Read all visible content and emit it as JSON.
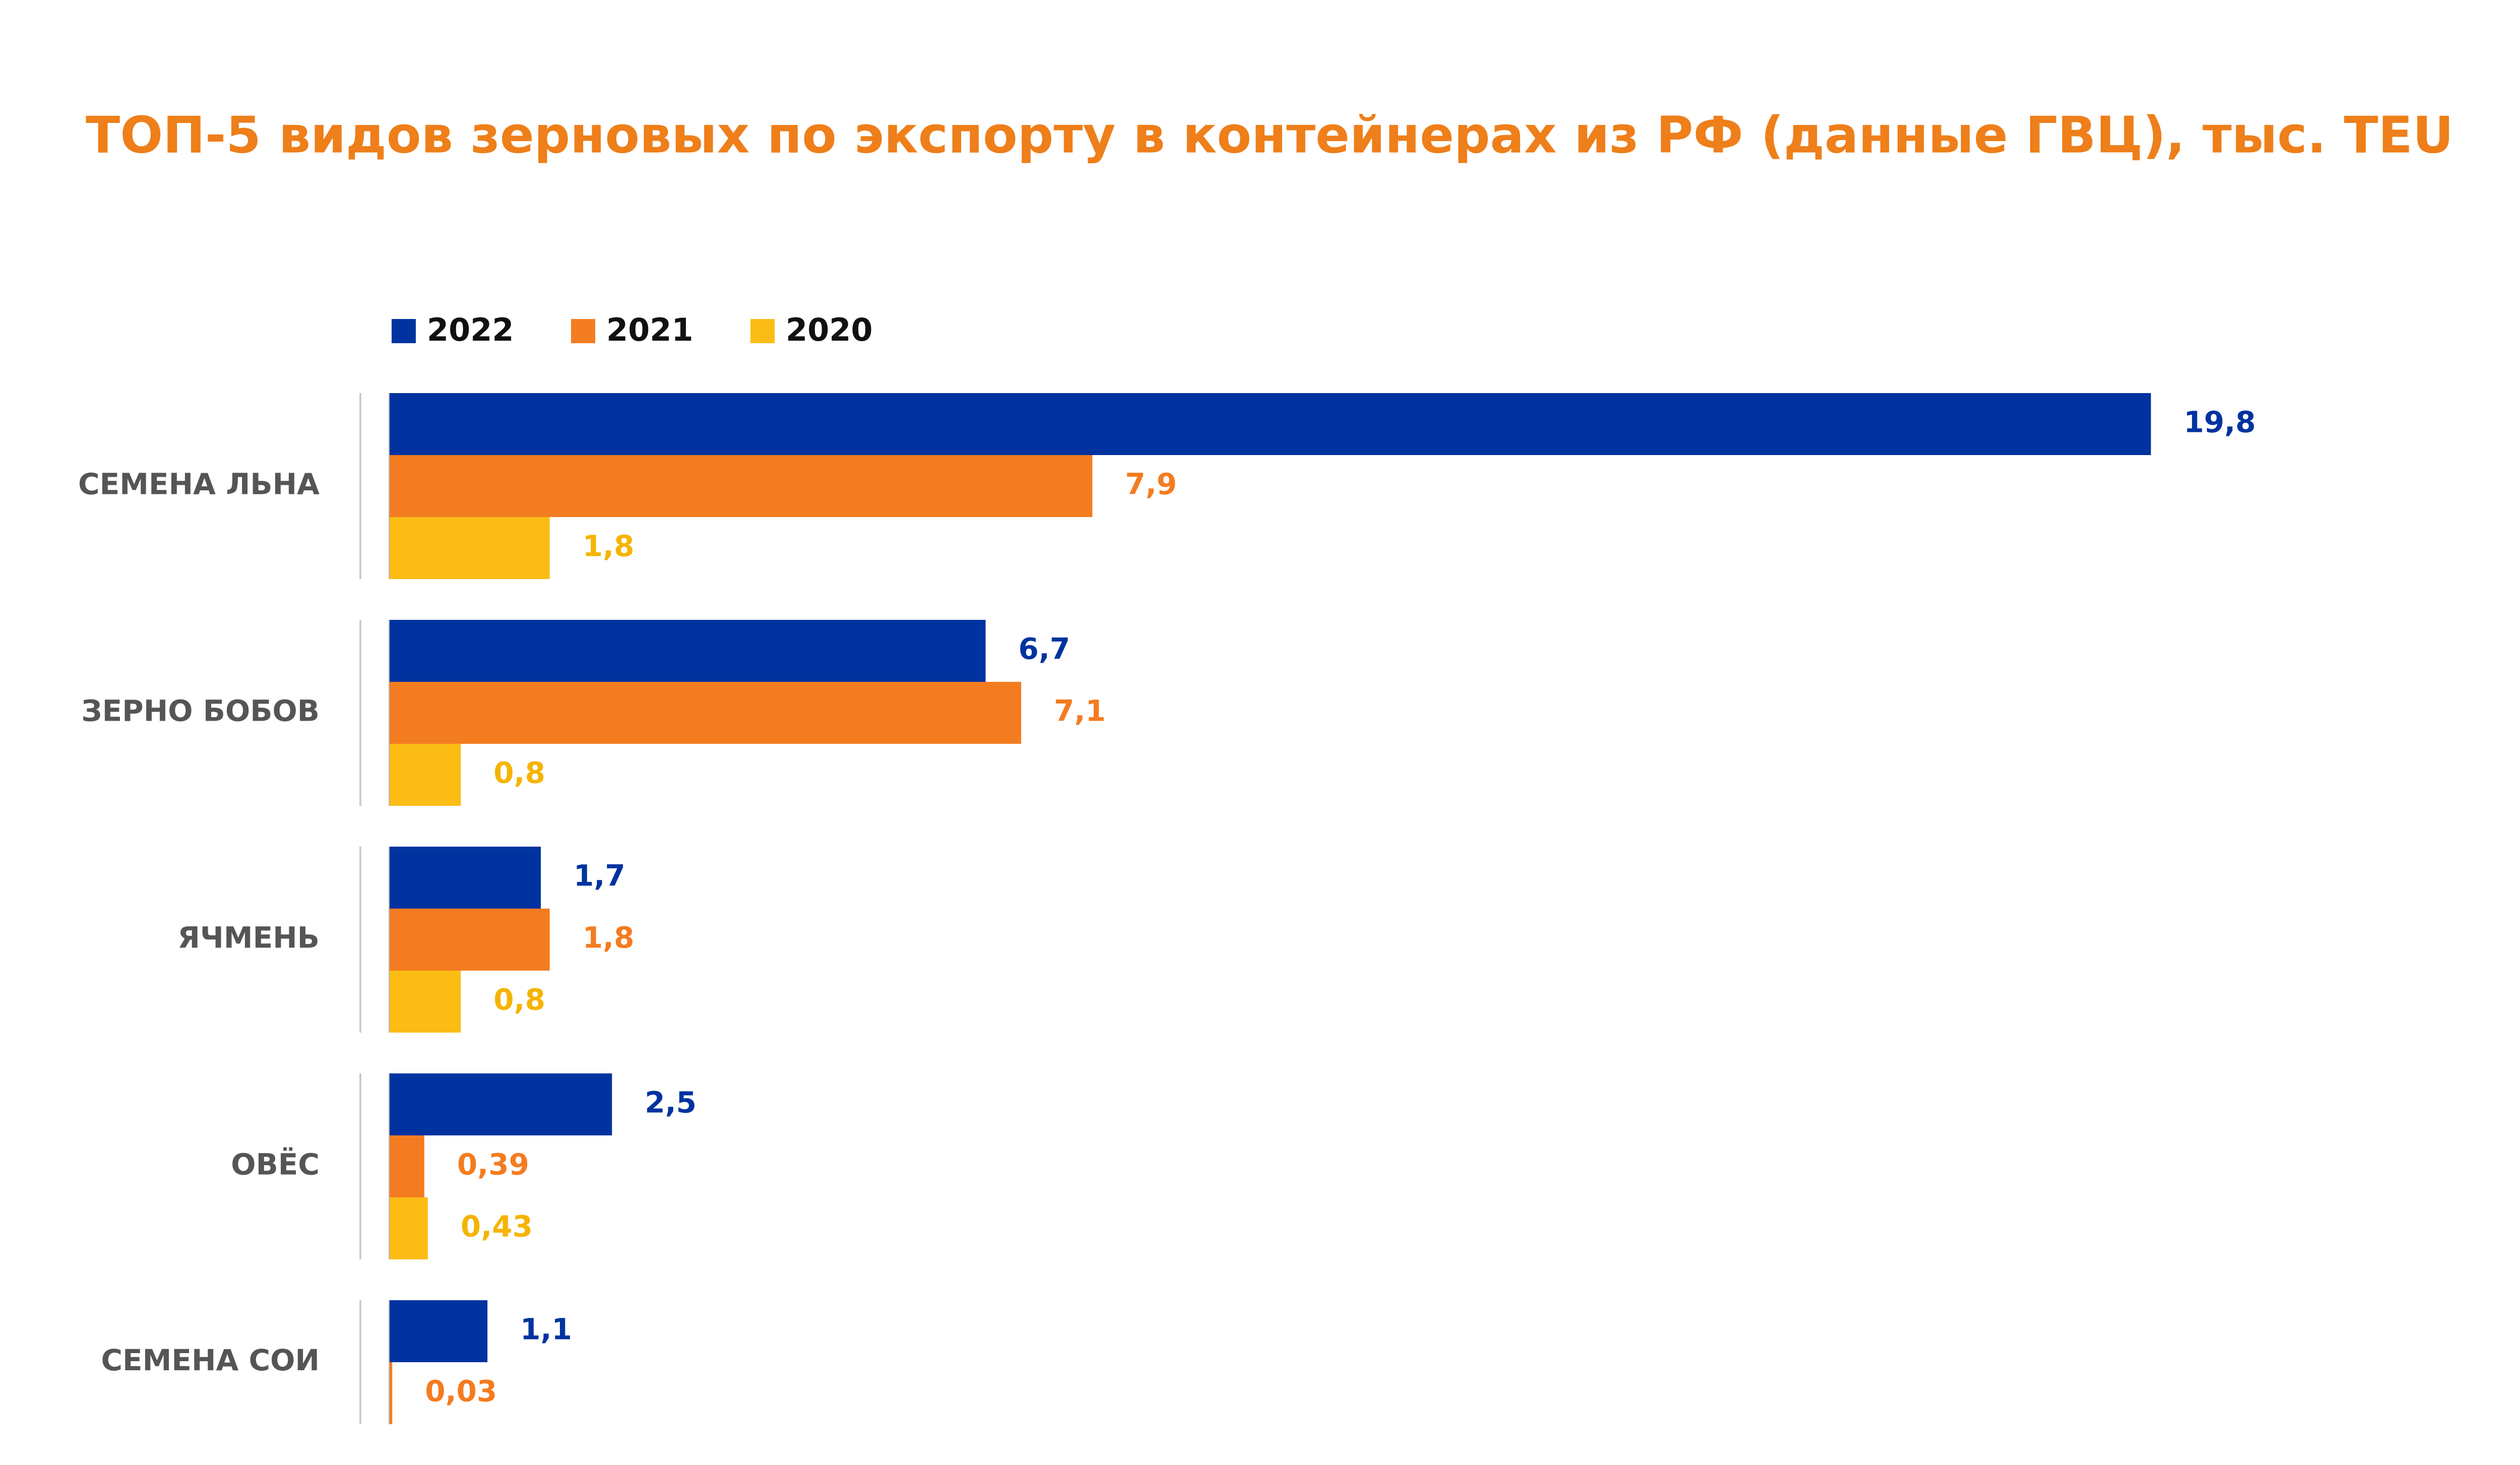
{
  "chart_data": {
    "type": "hbar",
    "title": "ТОП-5 видов зерновых по экспорту в контейнерах из РФ (данные ГВЦ), тыс. TEU",
    "categories": [
      "СЕМЕНА ЛЬНА",
      "ЗЕРНО БОБОВ",
      "ЯЧМЕНЬ",
      "ОВЁС",
      "СЕМЕНА СОИ"
    ],
    "series": [
      {
        "name": "2022",
        "color": "#0033a0",
        "values": [
          19.8,
          6.7,
          1.7,
          2.5,
          1.1
        ],
        "value_labels": [
          "19,8",
          "6,7",
          "1,7",
          "2,5",
          "1,1"
        ]
      },
      {
        "name": "2021",
        "color": "#f47c20",
        "values": [
          7.9,
          7.1,
          1.8,
          0.39,
          0.03
        ],
        "value_labels": [
          "7,9",
          "7,1",
          "1,8",
          "0,39",
          "0,03"
        ]
      },
      {
        "name": "2020",
        "color": "#fbbc15",
        "values": [
          1.8,
          0.8,
          0.8,
          0.43,
          null
        ],
        "value_labels": [
          "1,8",
          "0,8",
          "0,8",
          "0,43",
          null
        ]
      }
    ],
    "legend": "top-left"
  }
}
